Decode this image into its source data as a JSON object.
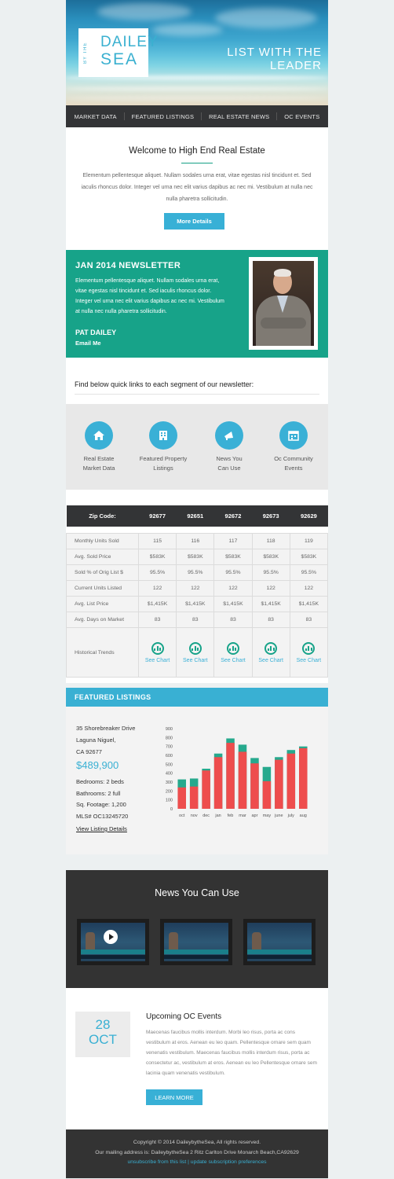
{
  "hero": {
    "logo_by": "BY THE",
    "logo_line1": "DAILEY",
    "logo_line2": "SEA",
    "tagline": "LIST WITH THE LEADER"
  },
  "nav": [
    "MARKET DATA",
    "FEATURED LISTINGS",
    "REAL ESTATE NEWS",
    "OC EVENTS"
  ],
  "welcome": {
    "title": "Welcome to High End Real Estate",
    "body": "Elementum pellentesque aliquet. Nullam sodales urna erat, vitae egestas nisl tincidunt et. Sed iaculis rhoncus dolor. Integer vel urna nec elit varius dapibus ac nec mi. Vestibulum at nulla nec nulla pharetra sollicitudin.",
    "button": "More Details"
  },
  "newsletter": {
    "title": "JAN 2014 NEWSLETTER",
    "body": "Elementum pellentesque aliquet. Nullam sodales urna erat, vitae egestas nisl tincidunt et. Sed iaculis rhoncus dolor. Integer vel urna nec elit varius dapibus ac nec mi. Vestibulum at nulla nec nulla pharetra sollicitudin.",
    "name": "PAT DAILEY",
    "email_link": "Email Me"
  },
  "quick_links": {
    "heading": "Find below quick links to each segment of our newsletter:",
    "items": [
      {
        "line1": "Real Estate",
        "line2": "Market Data",
        "icon": "home-icon"
      },
      {
        "line1": "Featured Property",
        "line2": "Listings",
        "icon": "building-icon"
      },
      {
        "line1": "News You",
        "line2": "Can Use",
        "icon": "megaphone-icon"
      },
      {
        "line1": "Oc Community",
        "line2": "Events",
        "icon": "calendar-icon"
      }
    ]
  },
  "market_table": {
    "header_label": "Zip Code:",
    "zips": [
      "92677",
      "92651",
      "92672",
      "92673",
      "92629"
    ],
    "rows": [
      {
        "label": "Monthly Units Sold",
        "values": [
          "115",
          "116",
          "117",
          "118",
          "119"
        ]
      },
      {
        "label": "Avg. Sold Price",
        "values": [
          "$583K",
          "$583K",
          "$583K",
          "$583K",
          "$583K"
        ]
      },
      {
        "label": "Sold % of Orig List $",
        "values": [
          "95.5%",
          "95.5%",
          "95.5%",
          "95.5%",
          "95.5%"
        ]
      },
      {
        "label": "Current Units Listed",
        "values": [
          "122",
          "122",
          "122",
          "122",
          "122"
        ]
      },
      {
        "label": "Avg. List Price",
        "values": [
          "$1,415K",
          "$1,415K",
          "$1,415K",
          "$1,415K",
          "$1,415K"
        ]
      },
      {
        "label": "Avg. Days on Market",
        "values": [
          "83",
          "83",
          "83",
          "83",
          "83"
        ]
      }
    ],
    "trend_label": "Historical Trends",
    "trend_link": "See Chart"
  },
  "featured": {
    "header": "FEATURED LISTINGS",
    "address1": "35 Shorebreaker Drive",
    "address2": "Laguna Niguel,",
    "address3": "CA 92677",
    "price": "$489,900",
    "bedrooms": "Bedrooms: 2 beds",
    "bathrooms": "Bathrooms: 2 full",
    "sqft": "Sq. Footage: 1,200",
    "mls": "MLS# OC13245720",
    "view_link": "View Listing Details"
  },
  "chart_data": {
    "type": "bar",
    "categories": [
      "oct",
      "nov",
      "dec",
      "jan",
      "feb",
      "mar",
      "apr",
      "may",
      "june",
      "july",
      "aug"
    ],
    "series": [
      {
        "values": [
          240,
          250,
          430,
          580,
          740,
          640,
          510,
          310,
          550,
          620,
          680
        ]
      },
      {
        "values": [
          330,
          340,
          450,
          620,
          790,
          720,
          570,
          470,
          580,
          660,
          700
        ]
      }
    ],
    "ylim": [
      0,
      900
    ],
    "yticks": [
      0,
      100,
      200,
      300,
      400,
      500,
      600,
      700,
      800,
      900
    ],
    "colors": {
      "primary": "#ee4d4d",
      "secondary": "#26a98d"
    }
  },
  "news": {
    "title": "News You Can Use"
  },
  "events": {
    "day": "28",
    "month": "OCT",
    "title": "Upcoming OC Events",
    "body": "Maecenas faucibus mollis interdum. Morbi leo risus, porta ac cons vestibulum at eros. Aenean eu leo quam. Pellentesque ornare sem quam venenatis vestibulum. Maecenas faucibus mollis interdum risus, porta ac consectetur ac, vestibulum at eros. Aenean eu leo Pellentesque ornare sem lacinia quam venenatis vestibulum.",
    "button": "LEARN MORE"
  },
  "footer": {
    "copyright": "Copyright © 2014 DaileybytheSea, All rights reserved.",
    "address": "Our mailing address is: DaileybytheSea 2 Ritz Carlton Drive Monarch Beach,CA92629",
    "links": "unsubscribe from this list | update subscription preferences"
  },
  "colors": {
    "teal": "#17a389",
    "blue": "#39b0d3",
    "dark": "#333436"
  }
}
